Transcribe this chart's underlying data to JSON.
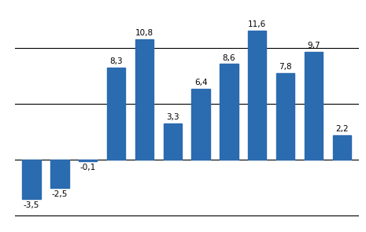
{
  "values": [
    -3.5,
    -2.5,
    -0.1,
    8.3,
    10.8,
    3.3,
    6.4,
    8.6,
    11.6,
    7.8,
    9.7,
    2.2
  ],
  "bar_color": "#2B6BB0",
  "background_color": "#ffffff",
  "ylim": [
    -4.5,
    13.5
  ],
  "yticks": [
    0,
    5,
    10
  ],
  "hlines": [
    -5,
    0,
    5,
    10
  ],
  "bar_width": 0.65,
  "label_fontsize": 7.5,
  "grid_color": "#000000",
  "grid_linewidth": 0.8
}
